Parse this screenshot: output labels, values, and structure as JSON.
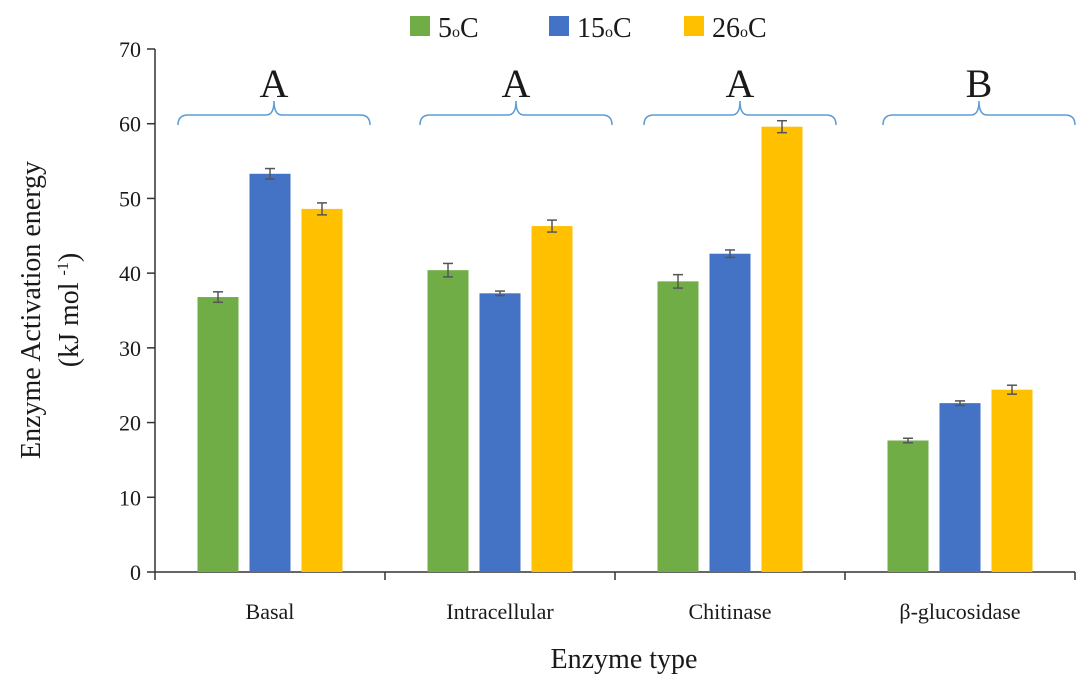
{
  "chart_data": {
    "type": "bar",
    "categories": [
      "Basal",
      "Intracellular",
      "Chitinase",
      "β-glucosidase"
    ],
    "series": [
      {
        "name": "5oC",
        "prefix": "5",
        "sup": "o",
        "suffix": "C",
        "color": "#70AD47",
        "values": [
          36.8,
          40.4,
          38.9,
          17.6
        ],
        "errors": [
          0.7,
          0.9,
          0.9,
          0.3
        ]
      },
      {
        "name": "15oC",
        "prefix": "15",
        "sup": "o",
        "suffix": "C",
        "color": "#4472C4",
        "values": [
          53.3,
          37.3,
          42.6,
          22.6
        ],
        "errors": [
          0.7,
          0.3,
          0.5,
          0.3
        ]
      },
      {
        "name": "26oC",
        "prefix": "26",
        "sup": "o",
        "suffix": "C",
        "color": "#FFC000",
        "values": [
          48.6,
          46.3,
          59.6,
          24.4
        ],
        "errors": [
          0.8,
          0.8,
          0.8,
          0.6
        ]
      }
    ],
    "group_letters": [
      "A",
      "A",
      "A",
      "B"
    ],
    "ylim": [
      0,
      70
    ],
    "yticks": [
      0,
      10,
      20,
      30,
      40,
      50,
      60,
      70
    ],
    "xlabel": "Enzyme type",
    "ylabel_line1": "Enzyme Activation energy",
    "ylabel_line2_prefix": "(kJ mol ",
    "ylabel_line2_sup": "-1",
    "ylabel_line2_suffix": ")",
    "legend_position": "top",
    "grid": false,
    "bracket_color": "#5B9BD5",
    "error_bar_color": "#555555"
  }
}
